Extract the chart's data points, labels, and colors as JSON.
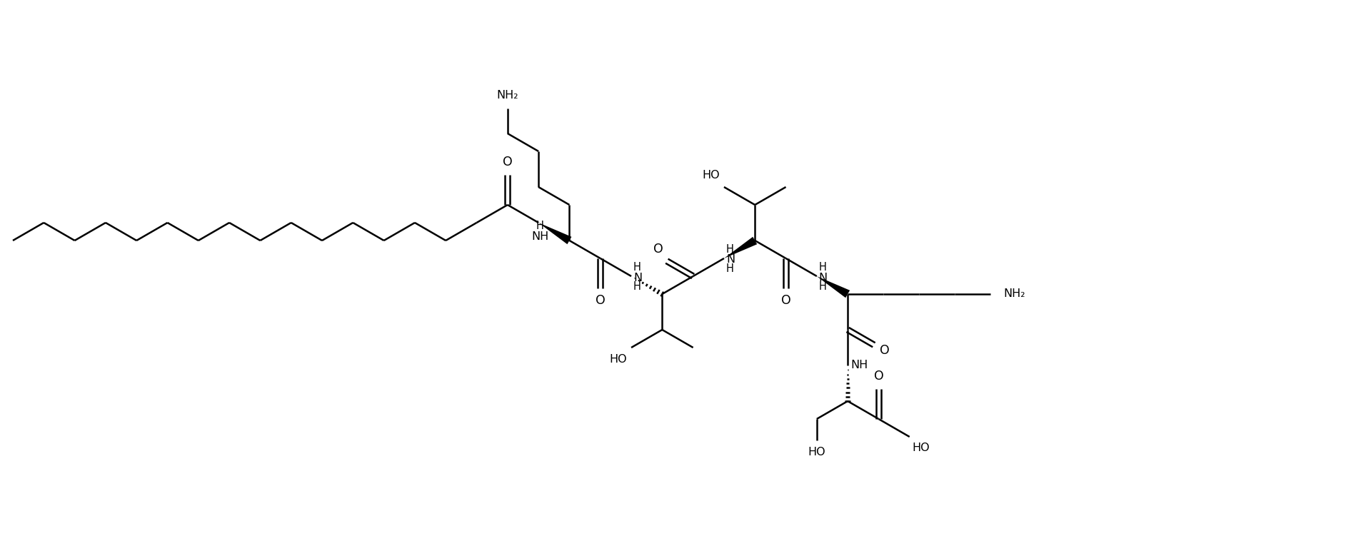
{
  "bg": "#ffffff",
  "lc": "#000000",
  "lw": 1.8,
  "fs": 11.5,
  "figsize": [
    19.2,
    7.72
  ],
  "dpi": 100,
  "xlim": [
    0,
    19.2
  ],
  "ylim": [
    0,
    7.72
  ]
}
